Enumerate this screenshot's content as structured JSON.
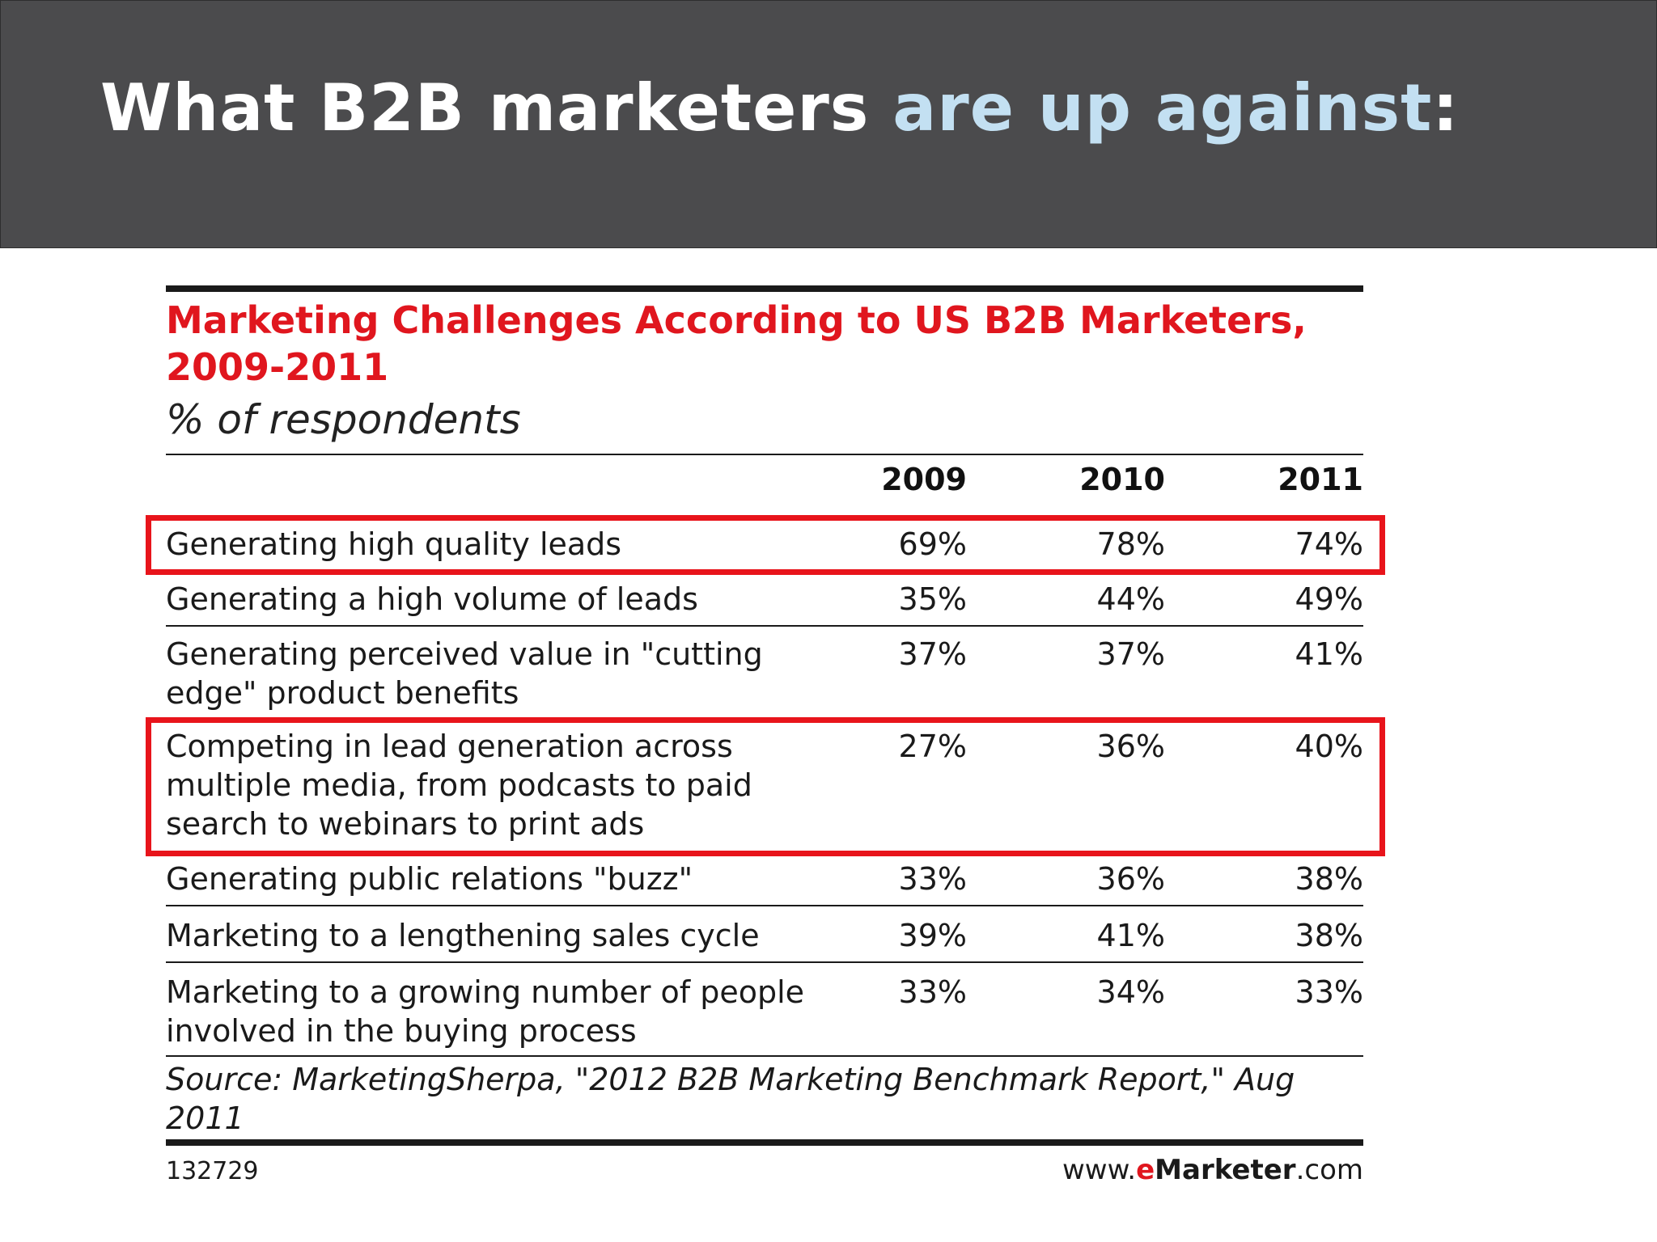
{
  "slide": {
    "title_part1": "What B2B marketers ",
    "title_highlight": "are up against",
    "title_part3": ":",
    "header_color": "#4b4b4d",
    "highlight_color": "#c3e0f2"
  },
  "chart_data": {
    "type": "table",
    "title": "Marketing Challenges According to US B2B Marketers, 2009-2011",
    "subtitle": "% of respondents",
    "columns": [
      "2009",
      "2010",
      "2011"
    ],
    "rows": [
      {
        "label": "Generating high quality leads",
        "values": [
          "69%",
          "78%",
          "74%"
        ],
        "highlighted": true
      },
      {
        "label": "Generating a high volume of leads",
        "values": [
          "35%",
          "44%",
          "49%"
        ],
        "highlighted": false
      },
      {
        "label": "Generating perceived value in \"cutting edge\" product benefits",
        "values": [
          "37%",
          "37%",
          "41%"
        ],
        "highlighted": false
      },
      {
        "label": "Competing in lead generation across multiple media, from podcasts to paid search to webinars to print ads",
        "values": [
          "27%",
          "36%",
          "40%"
        ],
        "highlighted": true
      },
      {
        "label": "Generating public relations \"buzz\"",
        "values": [
          "33%",
          "36%",
          "38%"
        ],
        "highlighted": false
      },
      {
        "label": "Marketing to a lengthening sales cycle",
        "values": [
          "39%",
          "41%",
          "38%"
        ],
        "highlighted": false
      },
      {
        "label": "Marketing to a growing number of people involved in the buying process",
        "values": [
          "33%",
          "34%",
          "33%"
        ],
        "highlighted": false
      }
    ],
    "source": "Source: MarketingSherpa, \"2012 B2B Marketing Benchmark Report,\" Aug 2011",
    "chart_id": "132729",
    "brand_prefix": "www.",
    "brand_e": "e",
    "brand_name": "Marketer",
    "brand_suffix": ".com",
    "title_color": "#e0161e",
    "highlight_box_color": "#e8141b"
  }
}
